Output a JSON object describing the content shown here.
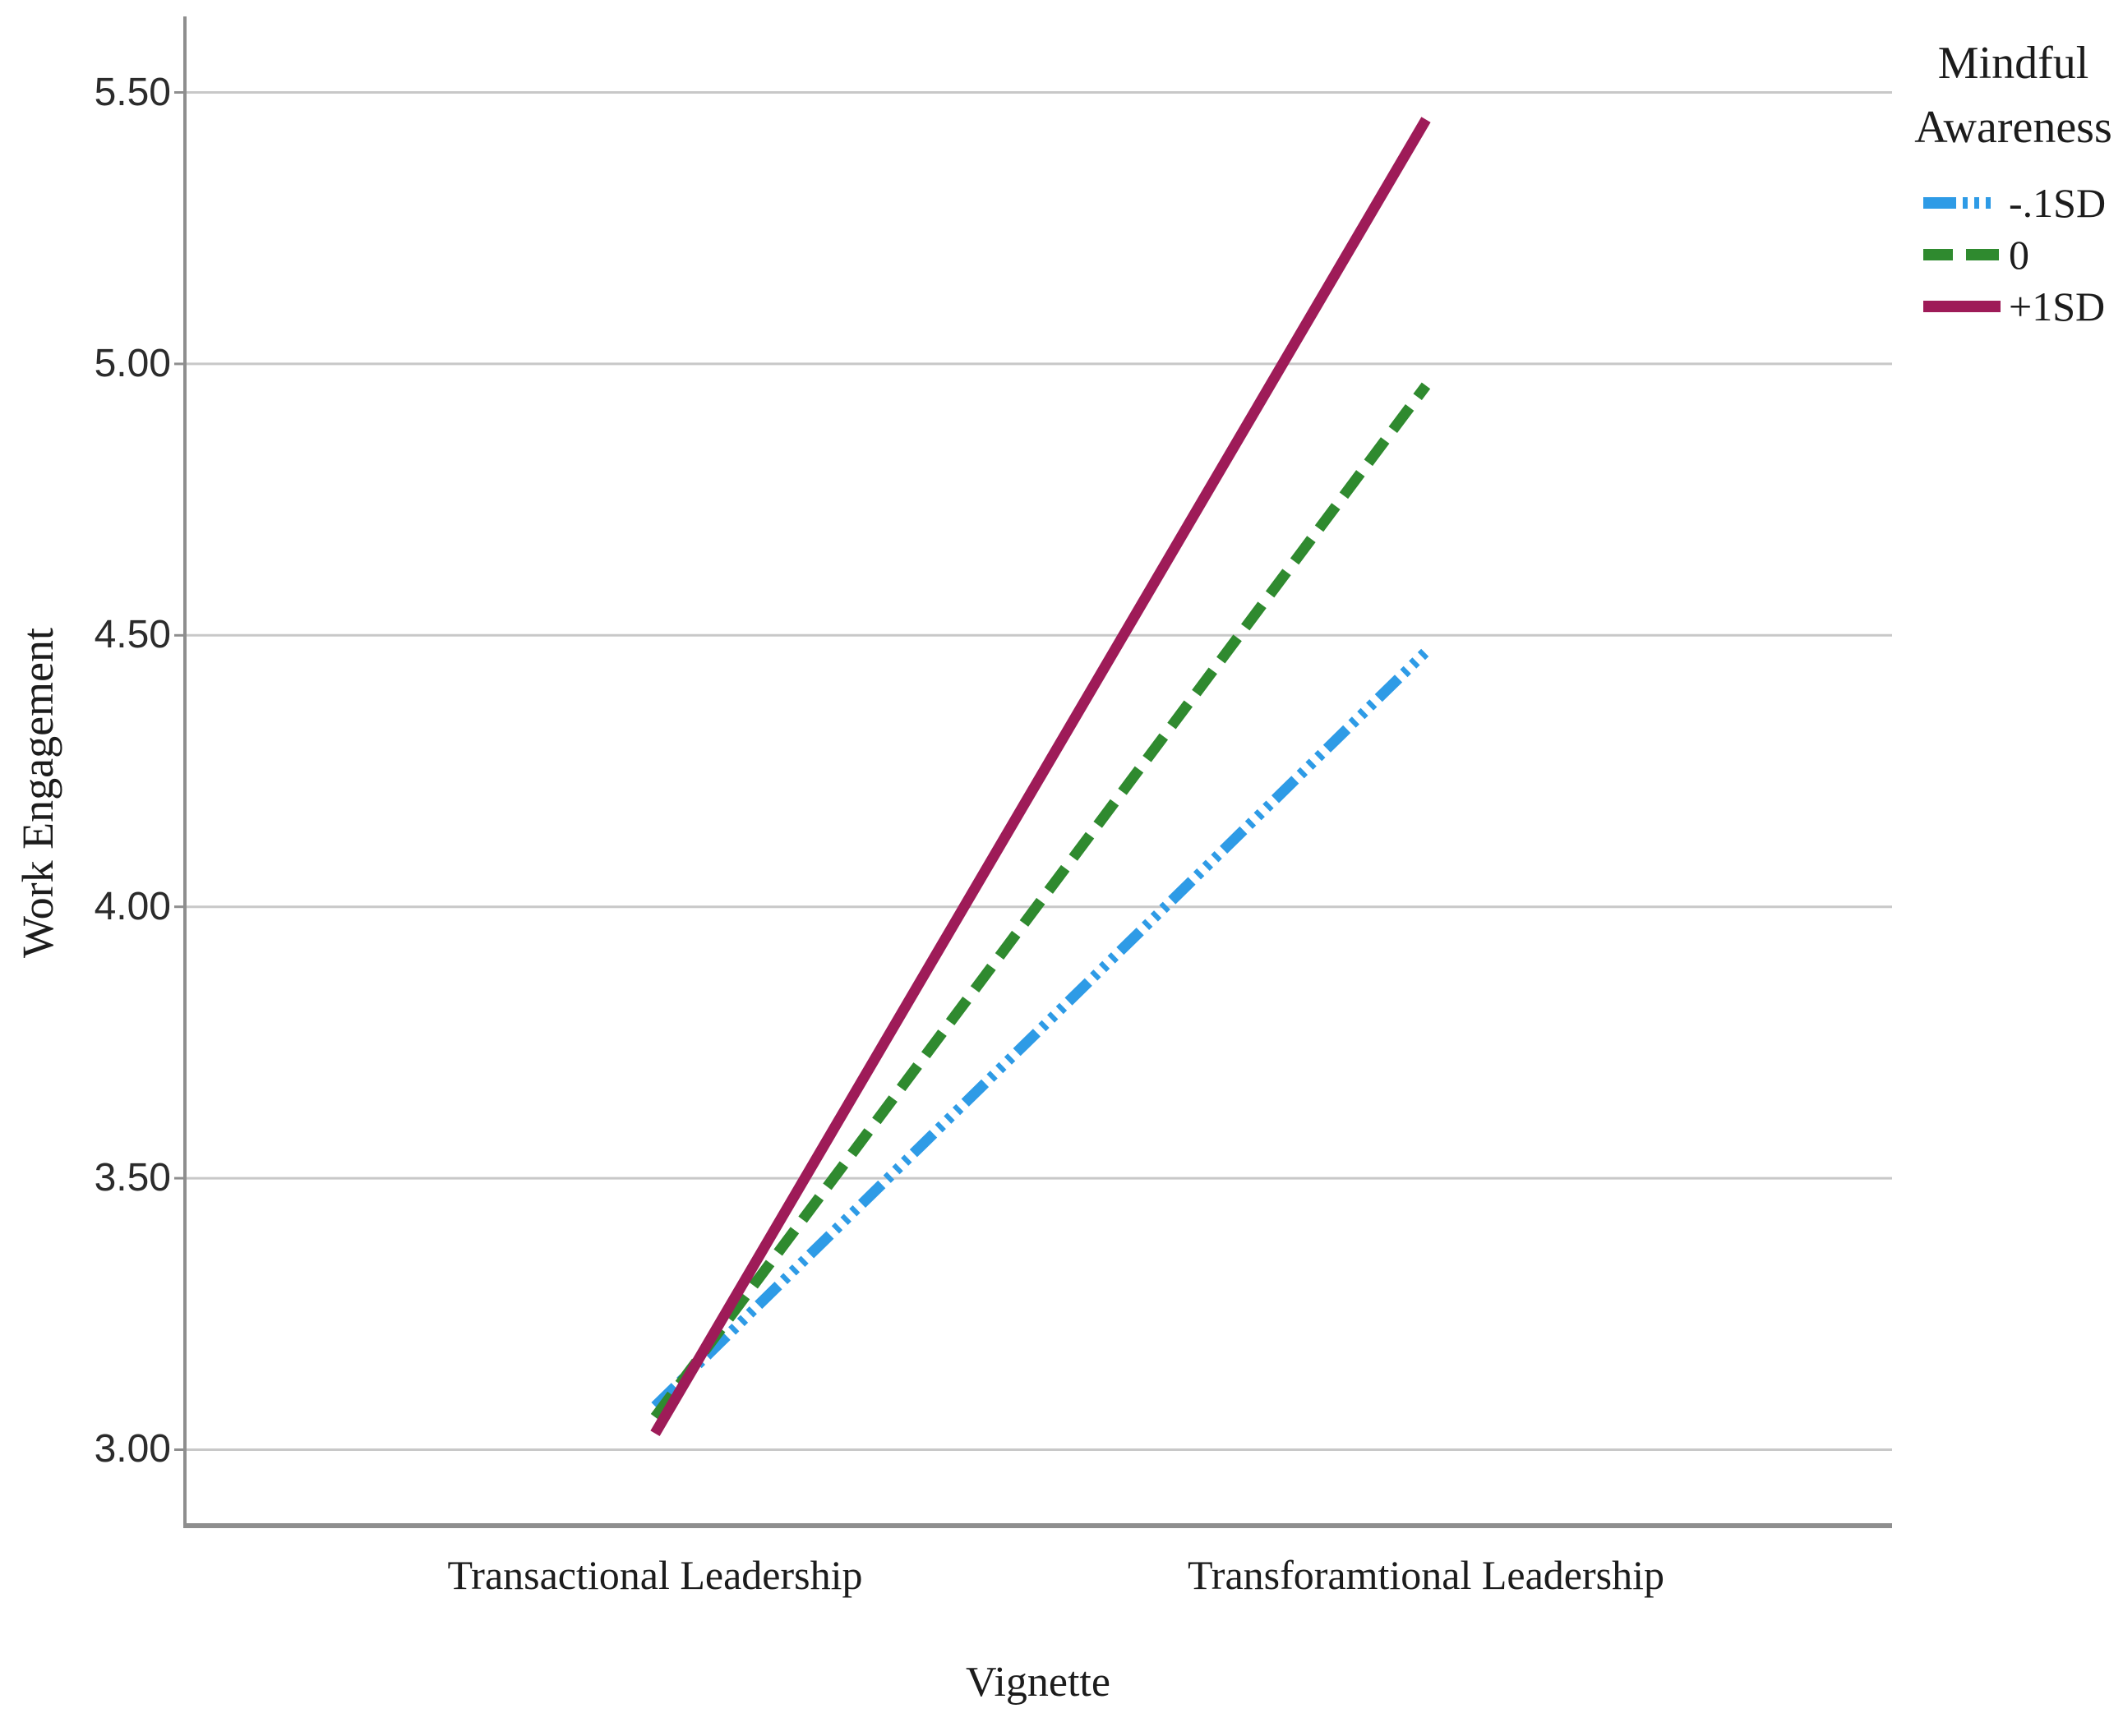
{
  "chart_data": {
    "type": "line",
    "categories": [
      "Transactional Leadership",
      "Transforamtional Leadership"
    ],
    "series": [
      {
        "name": "-.1SD",
        "color": "#2E9BE6",
        "line_style": "dash-dot-dot-dot",
        "values": [
          3.08,
          4.47
        ]
      },
      {
        "name": "0",
        "color": "#2F8A2F",
        "line_style": "dashed",
        "values": [
          3.06,
          4.96
        ]
      },
      {
        "name": "+1SD",
        "color": "#9E1B58",
        "line_style": "solid",
        "values": [
          3.03,
          5.45
        ]
      }
    ],
    "title": "",
    "xlabel": "Vignette",
    "ylabel": "Work Engagement",
    "ylim": [
      2.86,
      5.64
    ],
    "yticks": [
      5.5,
      5.0,
      4.5,
      4.0,
      3.5,
      3.0
    ],
    "ytick_labels": [
      "5.50",
      "5.00",
      "4.50",
      "4.00",
      "3.50",
      "3.00"
    ],
    "grid": true,
    "legend": {
      "title": "Mindful Awareness",
      "position": "top-right"
    },
    "colors": {
      "gridline": "#C8C8C8",
      "axis": "#8E8E8E",
      "tick_text": "#2b2b2b",
      "text": "#1c1c1c"
    }
  }
}
